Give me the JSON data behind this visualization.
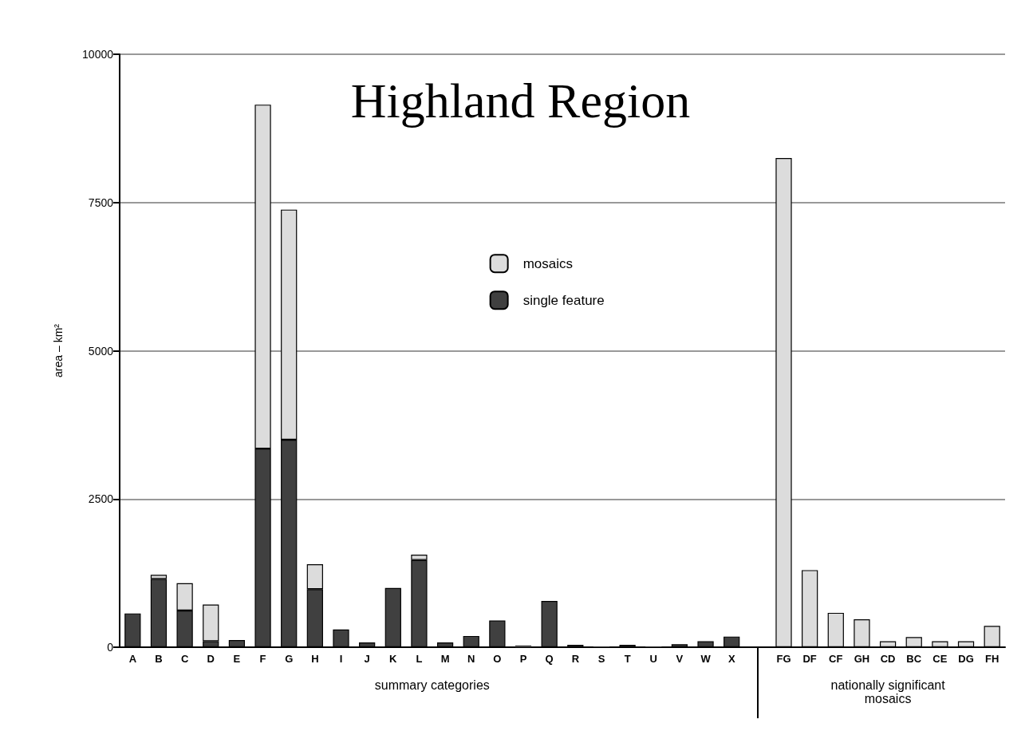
{
  "chart_data": {
    "type": "bar",
    "title": "Highland Region",
    "ylabel": "area – km²",
    "stacked": true,
    "grid": "y",
    "legend": "top",
    "categories": [
      "A",
      "B",
      "C",
      "D",
      "E",
      "F",
      "G",
      "H",
      "I",
      "J",
      "K",
      "L",
      "M",
      "N",
      "O",
      "P",
      "Q",
      "R",
      "S",
      "T",
      "U",
      "V",
      "W",
      "X",
      null,
      "FG",
      "DF",
      "CF",
      "GH",
      "CD",
      "BC",
      "CE",
      "DG",
      "FH"
    ],
    "series": [
      {
        "name": "single feature",
        "color": "#404040",
        "values": [
          570,
          1150,
          620,
          100,
          120,
          3350,
          3500,
          980,
          300,
          80,
          1000,
          1470,
          80,
          190,
          450,
          30,
          780,
          40,
          10,
          40,
          10,
          50,
          100,
          180,
          null,
          null,
          null,
          null,
          null,
          null,
          null,
          null,
          null,
          null
        ]
      },
      {
        "name": "mosaics",
        "color": "#dcdcdc",
        "values": [
          null,
          70,
          460,
          620,
          null,
          5800,
          3880,
          420,
          null,
          null,
          null,
          90,
          null,
          null,
          null,
          null,
          null,
          null,
          null,
          null,
          null,
          null,
          null,
          null,
          null,
          8250,
          1300,
          580,
          470,
          100,
          170,
          100,
          100,
          360
        ]
      }
    ],
    "ylim": [
      0,
      10000
    ],
    "yticks": [
      0,
      2500,
      5000,
      7500,
      10000
    ],
    "annotations": [
      "summary categories",
      "nationally significant\nmosaics"
    ]
  }
}
